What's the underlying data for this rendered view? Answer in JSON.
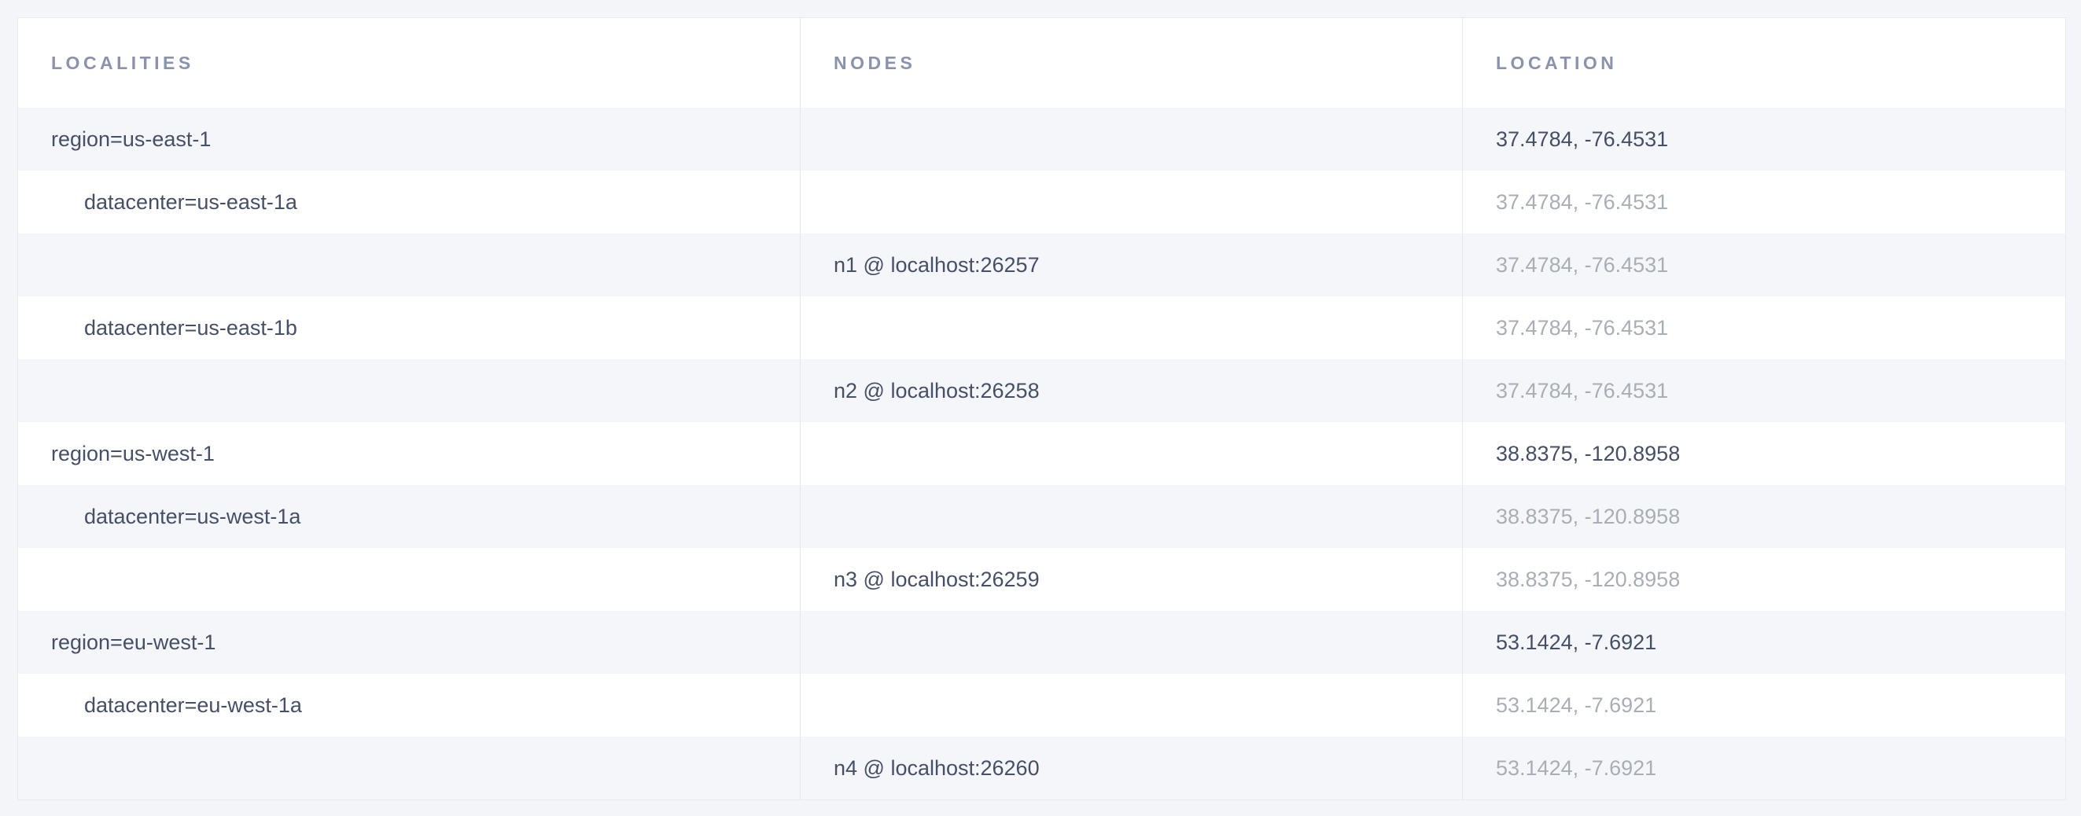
{
  "colors": {
    "page_background": "#f4f5f9",
    "row_stripe": "#f4f6f9",
    "row_white": "#ffffff",
    "border": "#e3e9ee",
    "header_text": "#8a92ad",
    "text_dark": "#454f66",
    "text_faded": "#a9aeb6"
  },
  "table": {
    "columns": [
      {
        "key": "localities",
        "label": "LOCALITIES"
      },
      {
        "key": "nodes",
        "label": "NODES"
      },
      {
        "key": "location",
        "label": "LOCATION"
      }
    ],
    "rows": [
      {
        "locality": "region=us-east-1",
        "indent": 0,
        "node": "",
        "location": "37.4784, -76.4531",
        "location_emphasis": "dark"
      },
      {
        "locality": "datacenter=us-east-1a",
        "indent": 1,
        "node": "",
        "location": "37.4784, -76.4531",
        "location_emphasis": "faded"
      },
      {
        "locality": "",
        "indent": 0,
        "node": "n1 @ localhost:26257",
        "location": "37.4784, -76.4531",
        "location_emphasis": "faded"
      },
      {
        "locality": "datacenter=us-east-1b",
        "indent": 1,
        "node": "",
        "location": "37.4784, -76.4531",
        "location_emphasis": "faded"
      },
      {
        "locality": "",
        "indent": 0,
        "node": "n2 @ localhost:26258",
        "location": "37.4784, -76.4531",
        "location_emphasis": "faded"
      },
      {
        "locality": "region=us-west-1",
        "indent": 0,
        "node": "",
        "location": "38.8375, -120.8958",
        "location_emphasis": "dark"
      },
      {
        "locality": "datacenter=us-west-1a",
        "indent": 1,
        "node": "",
        "location": "38.8375, -120.8958",
        "location_emphasis": "faded"
      },
      {
        "locality": "",
        "indent": 0,
        "node": "n3 @ localhost:26259",
        "location": "38.8375, -120.8958",
        "location_emphasis": "faded"
      },
      {
        "locality": "region=eu-west-1",
        "indent": 0,
        "node": "",
        "location": "53.1424, -7.6921",
        "location_emphasis": "dark"
      },
      {
        "locality": "datacenter=eu-west-1a",
        "indent": 1,
        "node": "",
        "location": "53.1424, -7.6921",
        "location_emphasis": "faded"
      },
      {
        "locality": "",
        "indent": 0,
        "node": "n4 @ localhost:26260",
        "location": "53.1424, -7.6921",
        "location_emphasis": "faded"
      }
    ]
  }
}
